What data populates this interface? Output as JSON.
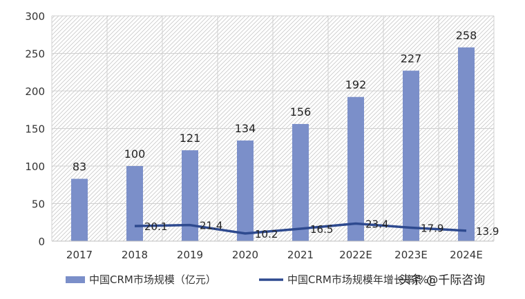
{
  "chart_data": {
    "type": "bar",
    "categories": [
      "2017",
      "2018",
      "2019",
      "2020",
      "2021",
      "2022E",
      "2023E",
      "2024E"
    ],
    "series": [
      {
        "name": "中国CRM市场规模（亿元）",
        "type": "bar",
        "axis": "left",
        "color": "#7b8fc9",
        "values": [
          83,
          100,
          121,
          134,
          156,
          192,
          227,
          258
        ]
      },
      {
        "name": "中国CRM市场规模年增长率(%)",
        "type": "line",
        "axis": "right-hidden",
        "color": "#2e4a8f",
        "values": [
          null,
          20.1,
          21.4,
          10.2,
          16.5,
          23.4,
          17.9,
          13.9
        ]
      }
    ],
    "yticks": [
      "0",
      "50",
      "100",
      "150",
      "200",
      "250",
      "300"
    ],
    "ylim": [
      0,
      300
    ],
    "line_ylim": [
      0,
      300
    ],
    "grid": true,
    "legend_position": "bottom",
    "watermark": "头条 @千际咨询"
  }
}
